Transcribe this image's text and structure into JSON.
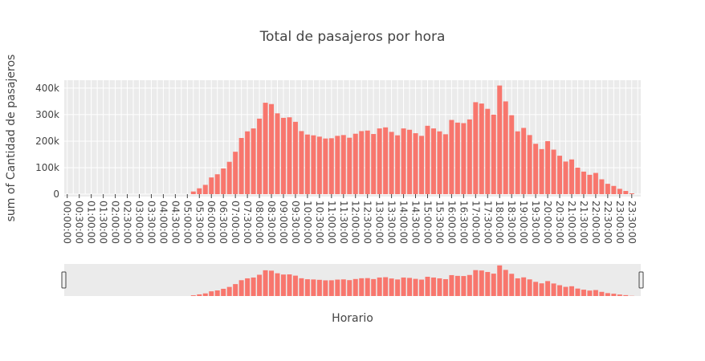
{
  "chart_data": {
    "type": "bar",
    "title": "Total de pasajeros por hora",
    "xlabel": "Horario",
    "ylabel": "sum of Cantidad de pasajeros",
    "ylim": [
      0,
      430000
    ],
    "grid": true,
    "legend": "none",
    "bar_color": "#f8766d",
    "plot_bg": "#ebebeb",
    "y_ticks": [
      {
        "value": 0,
        "label": "0"
      },
      {
        "value": 100000,
        "label": "100k"
      },
      {
        "value": 200000,
        "label": "200k"
      },
      {
        "value": 300000,
        "label": "300k"
      },
      {
        "value": 400000,
        "label": "400k"
      }
    ],
    "categories": [
      "00:00:00",
      "00:15:00",
      "00:30:00",
      "00:45:00",
      "01:00:00",
      "01:15:00",
      "01:30:00",
      "01:45:00",
      "02:00:00",
      "02:15:00",
      "02:30:00",
      "02:45:00",
      "03:00:00",
      "03:15:00",
      "03:30:00",
      "03:45:00",
      "04:00:00",
      "04:15:00",
      "04:30:00",
      "04:45:00",
      "05:00:00",
      "05:15:00",
      "05:30:00",
      "05:45:00",
      "06:00:00",
      "06:15:00",
      "06:30:00",
      "06:45:00",
      "07:00:00",
      "07:15:00",
      "07:30:00",
      "07:45:00",
      "08:00:00",
      "08:15:00",
      "08:30:00",
      "08:45:00",
      "09:00:00",
      "09:15:00",
      "09:30:00",
      "09:45:00",
      "10:00:00",
      "10:15:00",
      "10:30:00",
      "10:45:00",
      "11:00:00",
      "11:15:00",
      "11:30:00",
      "11:45:00",
      "12:00:00",
      "12:15:00",
      "12:30:00",
      "12:45:00",
      "13:00:00",
      "13:15:00",
      "13:30:00",
      "13:45:00",
      "14:00:00",
      "14:15:00",
      "14:30:00",
      "14:45:00",
      "15:00:00",
      "15:15:00",
      "15:30:00",
      "15:45:00",
      "16:00:00",
      "16:15:00",
      "16:30:00",
      "16:45:00",
      "17:00:00",
      "17:15:00",
      "17:30:00",
      "17:45:00",
      "18:00:00",
      "18:15:00",
      "18:30:00",
      "18:45:00",
      "19:00:00",
      "19:15:00",
      "19:30:00",
      "19:45:00",
      "20:00:00",
      "20:15:00",
      "20:30:00",
      "20:45:00",
      "21:00:00",
      "21:15:00",
      "21:30:00",
      "21:45:00",
      "22:00:00",
      "22:15:00",
      "22:30:00",
      "22:45:00",
      "23:00:00",
      "23:15:00",
      "23:30:00",
      "23:45:00"
    ],
    "tick_labels": [
      "00:00:00",
      "00:30:00",
      "01:00:00",
      "01:30:00",
      "02:00:00",
      "02:30:00",
      "03:00:00",
      "03:30:00",
      "04:00:00",
      "04:30:00",
      "05:00:00",
      "05:30:00",
      "06:00:00",
      "06:30:00",
      "07:00:00",
      "07:30:00",
      "08:00:00",
      "08:30:00",
      "09:00:00",
      "09:30:00",
      "10:00:00",
      "10:30:00",
      "11:00:00",
      "11:30:00",
      "12:00:00",
      "12:30:00",
      "13:00:00",
      "13:30:00",
      "14:00:00",
      "14:30:00",
      "15:00:00",
      "15:30:00",
      "16:00:00",
      "16:30:00",
      "17:00:00",
      "17:30:00",
      "18:00:00",
      "18:30:00",
      "19:00:00",
      "19:30:00",
      "20:00:00",
      "20:30:00",
      "21:00:00",
      "21:30:00",
      "22:00:00",
      "22:30:00",
      "23:00:00",
      "23:30:00"
    ],
    "values": [
      0,
      0,
      0,
      0,
      0,
      0,
      0,
      0,
      0,
      0,
      0,
      0,
      0,
      0,
      0,
      0,
      0,
      0,
      0,
      0,
      0,
      10000,
      22000,
      35000,
      63000,
      75000,
      97000,
      122000,
      160000,
      212000,
      237000,
      248000,
      285000,
      345000,
      340000,
      305000,
      288000,
      290000,
      273000,
      238000,
      225000,
      222000,
      217000,
      210000,
      211000,
      220000,
      223000,
      213000,
      228000,
      238000,
      240000,
      227000,
      248000,
      252000,
      235000,
      222000,
      248000,
      243000,
      230000,
      220000,
      258000,
      248000,
      237000,
      226000,
      280000,
      270000,
      268000,
      282000,
      347000,
      342000,
      322000,
      300000,
      410000,
      350000,
      298000,
      237000,
      250000,
      223000,
      190000,
      170000,
      200000,
      168000,
      145000,
      123000,
      131000,
      100000,
      85000,
      73000,
      80000,
      56000,
      39000,
      31000,
      20000,
      12000,
      3000,
      0
    ]
  }
}
